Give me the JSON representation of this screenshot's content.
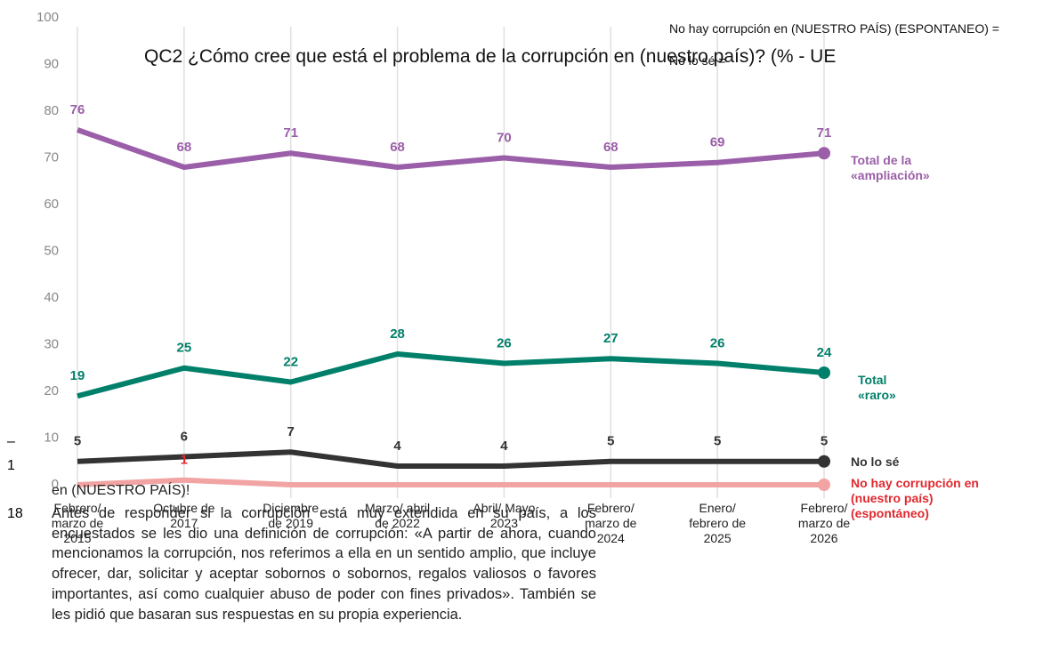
{
  "chart_data": {
    "type": "line",
    "title": "QC2 ¿Cómo cree que está el problema de la corrupción en (nuestro país)? (% - UE",
    "note_top": "No hay corrupción en (NUESTRO PAÍS) (ESPONTANEO) =",
    "note_top2": "No lo sé =",
    "footnote_dash": "–",
    "footnote_mark": "1",
    "footnote_partial": "en (NUESTRO PAÍS)!",
    "footnote_number": "18",
    "footnote": "Antes de responder si la corrupción está muy extendida en su país, a los encuestados se les dio una definición de corrupción: «A partir de ahora, cuando mencionamos la corrupción, nos referimos a ella en un sentido amplio, que incluye ofrecer, dar, solicitar y aceptar sobornos o sobornos, regalos valiosos o favores importantes, así como cualquier abuso de poder con fines privados». También se les pidió que basaran sus respuestas en su propia experiencia.",
    "categories": [
      "Febrero/ marzo de 2015",
      "Octubre de 2017",
      "Diciembre de 2019",
      "Marzo/ abril de 2022",
      "Abril/ Mayo 2023",
      "Febrero/ marzo de 2024",
      "Enero/ febrero de 2025",
      "Febrero/ marzo de 2026"
    ],
    "series": [
      {
        "name": "Total de la «ampliación»",
        "color": "#9b5ea8",
        "values": [
          76,
          68,
          71,
          68,
          70,
          68,
          69,
          71
        ]
      },
      {
        "name": "Total «raro»",
        "color": "#00806a",
        "values": [
          19,
          25,
          22,
          28,
          26,
          27,
          26,
          24
        ]
      },
      {
        "name": "No lo sé",
        "color": "#333333",
        "values": [
          5,
          6,
          7,
          4,
          4,
          5,
          5,
          5
        ]
      },
      {
        "name": "No hay corrupción en (nuestro país) (espontáneo)",
        "color": "#f2a3a3",
        "label_color": "#e0292f",
        "values": [
          0,
          1,
          0,
          0,
          0,
          0,
          0,
          0
        ],
        "value_labels": [
          null,
          "1",
          null,
          null,
          null,
          null,
          null,
          null
        ]
      }
    ],
    "ylim": [
      0,
      100
    ],
    "yticks": [
      0,
      10,
      20,
      30,
      40,
      50,
      60,
      70,
      80,
      90,
      100
    ],
    "grid": true
  }
}
